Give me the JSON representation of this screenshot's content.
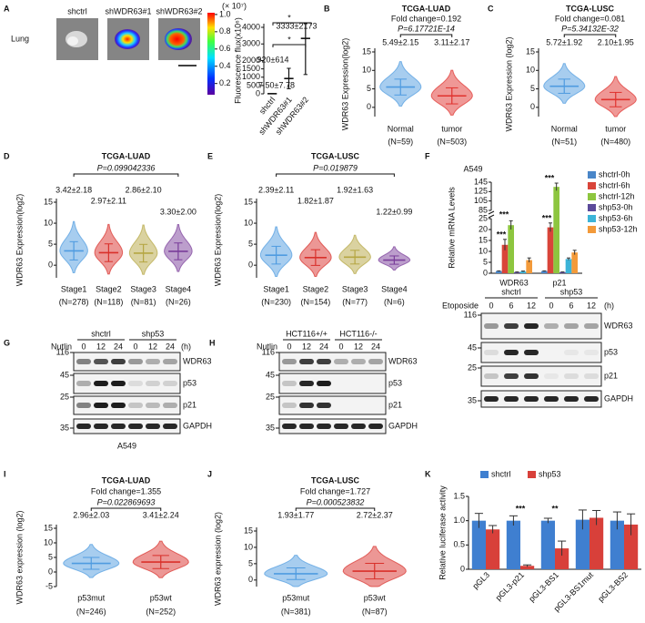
{
  "panel_labels": [
    "A",
    "B",
    "C",
    "D",
    "E",
    "F",
    "G",
    "H",
    "I",
    "J",
    "K"
  ],
  "panel_a": {
    "tissue": "Lung",
    "images": [
      "shctrl",
      "shWDR63#1",
      "shWDR63#2"
    ],
    "colorbar": {
      "unit": "(× 10⁷)",
      "lim": [
        0.07,
        1.02
      ],
      "ticks": [
        {
          "value": 1,
          "label": "1.0"
        },
        0.8,
        0.6,
        0.4,
        0.2
      ]
    }
  },
  "chart_data": [
    {
      "type": "dotplot",
      "ylabel": "Fluorescence flux(x10⁶)",
      "categories": [
        "shctrl",
        "shWDR63#1",
        "shWDR63#2"
      ],
      "values": [
        7.5,
        920,
        3333
      ],
      "errors": [
        7.78,
        614,
        2173
      ],
      "value_labels": [
        "7.50±7.78",
        "920±614",
        "3333±2173"
      ],
      "colors": [
        "#333333",
        "#333333",
        "#333333"
      ],
      "ylim": [
        0,
        4000
      ],
      "yticks": [
        0,
        500,
        1000,
        1500,
        2000,
        3000,
        4000
      ],
      "annotations": [
        "*",
        "*"
      ]
    },
    {
      "type": "dotplot",
      "title": "TCGA-LUAD",
      "fold_change": "Fold change=0.192",
      "p_value": "P=6.17721E-14",
      "ylabel": "WDR63 Expression(log2)",
      "categories": [
        "Normal",
        "tumor"
      ],
      "ns": [
        "(N=59)",
        "(N=503)"
      ],
      "values": [
        5.49,
        3.11
      ],
      "errors": [
        2.15,
        2.17
      ],
      "value_labels": [
        "5.49±2.15",
        "3.11±2.17"
      ],
      "colors": [
        "#4f9be0",
        "#e0322e"
      ],
      "ylim": [
        -2.5,
        15
      ],
      "yticks": [
        0,
        5,
        10,
        15
      ]
    },
    {
      "type": "dotplot",
      "title": "TCGA-LUSC",
      "fold_change": "Fold change=0.081",
      "p_value": "P=5.34132E-32",
      "ylabel": "WDR63 Expression (log2)",
      "categories": [
        "Normal",
        "tumor"
      ],
      "ns": [
        "(N=51)",
        "(N=480)"
      ],
      "values": [
        5.72,
        2.1
      ],
      "errors": [
        1.92,
        1.95
      ],
      "value_labels": [
        "5.72±1.92",
        "2.10±1.95"
      ],
      "colors": [
        "#4f9be0",
        "#e0322e"
      ],
      "ylim": [
        -2.5,
        15
      ],
      "yticks": [
        0,
        5,
        10,
        15
      ]
    },
    {
      "type": "dotplot",
      "title": "TCGA-LUAD",
      "p_value": "P=0.099042336",
      "ylabel": "WDR63 Expression(log2)",
      "categories": [
        "Stage1",
        "Stage2",
        "Stage3",
        "Stage4"
      ],
      "ns": [
        "(N=278)",
        "(N=118)",
        "(N=81)",
        "(N=26)"
      ],
      "values": [
        3.42,
        2.97,
        2.86,
        3.3
      ],
      "errors": [
        2.18,
        2.11,
        2.1,
        2.0
      ],
      "value_labels": [
        "3.42±2.18",
        "2.97±2.11",
        "2.86±2.10",
        "3.30±2.00"
      ],
      "colors": [
        "#4f9be0",
        "#d9302b",
        "#b5a642",
        "#7a3d9a"
      ],
      "ylim": [
        -3,
        15
      ],
      "yticks": [
        0,
        5,
        10,
        15
      ]
    },
    {
      "type": "dotplot",
      "title": "TCGA-LUSC",
      "p_value": "P=0.019879",
      "ylabel": "WDR63 Expression(log2)",
      "categories": [
        "Stage1",
        "Stage2",
        "Stage3",
        "Stage4"
      ],
      "ns": [
        "(N=230)",
        "(N=154)",
        "(N=77)",
        "(N=6)"
      ],
      "values": [
        2.39,
        1.82,
        1.92,
        1.22
      ],
      "errors": [
        2.11,
        1.87,
        1.63,
        0.99
      ],
      "value_labels": [
        "2.39±2.11",
        "1.82±1.87",
        "1.92±1.63",
        "1.22±0.99"
      ],
      "colors": [
        "#4f9be0",
        "#d9302b",
        "#b5a642",
        "#7a3d9a"
      ],
      "ylim": [
        -3,
        15
      ],
      "yticks": [
        0,
        5,
        10,
        15
      ]
    },
    {
      "type": "bar",
      "title": "A549",
      "ylabel": "Relative mRNA Levels",
      "categories": [
        "WDR63",
        "p21"
      ],
      "series": [
        {
          "name": "shctrl-0h",
          "color": "#4a86c8",
          "values": [
            1,
            1
          ],
          "errors": [
            0.1,
            0.1
          ]
        },
        {
          "name": "shctrl-6h",
          "color": "#d9453a",
          "values": [
            13,
            21
          ],
          "errors": [
            2.5,
            2
          ]
        },
        {
          "name": "shctrl-12h",
          "color": "#8dc63f",
          "values": [
            22,
            135
          ],
          "errors": [
            2,
            8
          ]
        },
        {
          "name": "shp53-0h",
          "color": "#5b4a9a",
          "values": [
            0.5,
            0.5
          ],
          "errors": [
            0.1,
            0.1
          ]
        },
        {
          "name": "shp53-6h",
          "color": "#3cb4d8",
          "values": [
            0.8,
            6.5
          ],
          "errors": [
            0.2,
            0.5
          ]
        },
        {
          "name": "shp53-12h",
          "color": "#f39a3a",
          "values": [
            6,
            9.5
          ],
          "errors": [
            1,
            1
          ]
        }
      ],
      "ylim": [
        0,
        145
      ],
      "ybreak": [
        25,
        85
      ],
      "yticks": [
        0,
        5,
        10,
        15,
        20,
        25,
        85,
        105,
        125,
        145
      ],
      "legend": "right",
      "annotations": [
        "***",
        "***",
        "***",
        "***"
      ]
    },
    {
      "type": "dotplot",
      "title": "TCGA-LUAD",
      "fold_change": "Fold change=1.355",
      "p_value": "P=0.022869693",
      "ylabel": "WDR63 expression (log2)",
      "categories": [
        "p53mut",
        "p53wt"
      ],
      "ns": [
        "(N=246)",
        "(N=252)"
      ],
      "values": [
        2.96,
        3.41
      ],
      "errors": [
        2.03,
        2.24
      ],
      "value_labels": [
        "2.96±2.03",
        "3.41±2.24"
      ],
      "colors": [
        "#4f9be0",
        "#d9302b"
      ],
      "ylim": [
        -5,
        15
      ],
      "yticks": [
        -5,
        0,
        5,
        10,
        15
      ]
    },
    {
      "type": "dotplot",
      "title": "TCGA-LUSC",
      "fold_change": "Fold change=1.727",
      "p_value": "P=0.000523832",
      "ylabel": "WDR63 expression (log2)",
      "categories": [
        "p53mut",
        "p53wt"
      ],
      "ns": [
        "(N=381)",
        "(N=87)"
      ],
      "values": [
        1.93,
        2.72
      ],
      "errors": [
        1.77,
        2.37
      ],
      "value_labels": [
        "1.93±1.77",
        "2.72±2.37"
      ],
      "colors": [
        "#4f9be0",
        "#d9302b"
      ],
      "ylim": [
        -2,
        15
      ],
      "yticks": [
        0,
        5,
        10,
        15
      ]
    },
    {
      "type": "bar",
      "ylabel": "Relative luciferase activity",
      "categories": [
        "pGL3",
        "pGL3-p21",
        "pGL3-BS1",
        "pGL3-BS1mut",
        "pGL3-BS2"
      ],
      "series": [
        {
          "name": "shctrl",
          "color": "#3f7fd0",
          "values": [
            1.0,
            1.0,
            1.0,
            1.02,
            1.0
          ],
          "errors": [
            0.15,
            0.1,
            0.05,
            0.2,
            0.18
          ]
        },
        {
          "name": "shp53",
          "color": "#d8403a",
          "values": [
            0.82,
            0.07,
            0.43,
            1.06,
            0.92
          ],
          "errors": [
            0.08,
            0.02,
            0.15,
            0.15,
            0.22
          ]
        }
      ],
      "ylim": [
        0,
        1.5
      ],
      "yticks": [
        0,
        0.5,
        {
          "value": 1,
          "label": "1.0"
        },
        1.5
      ],
      "legend": "top",
      "annotations": [
        "***",
        "**"
      ]
    }
  ],
  "blots": [
    {
      "treatment": "Etoposide",
      "groups": [
        "shctrl",
        "shp53"
      ],
      "times": [
        0,
        6,
        12,
        0,
        6,
        12
      ],
      "unit": "(h)",
      "markers": [
        116,
        45,
        25,
        35
      ],
      "proteins": [
        "WDR63",
        "p53",
        "p21",
        "GAPDH"
      ]
    },
    {
      "treatment": "Nutlin",
      "groups": [
        "shctrl",
        "shp53"
      ],
      "times": [
        0,
        12,
        24,
        0,
        12,
        24
      ],
      "unit": "(h)",
      "markers": [
        116,
        45,
        25,
        35
      ],
      "proteins": [
        "WDR63",
        "p53",
        "p21",
        "GAPDH"
      ],
      "caption": "A549"
    },
    {
      "treatment": "Nutlin",
      "groups": [
        "HCT116+/+",
        "HCT116-/-"
      ],
      "times": [
        0,
        12,
        24,
        0,
        12,
        24
      ],
      "markers": [
        116,
        45,
        25,
        35
      ],
      "proteins": [
        "WDR63",
        "p53",
        "p21",
        "GAPDH"
      ]
    }
  ]
}
